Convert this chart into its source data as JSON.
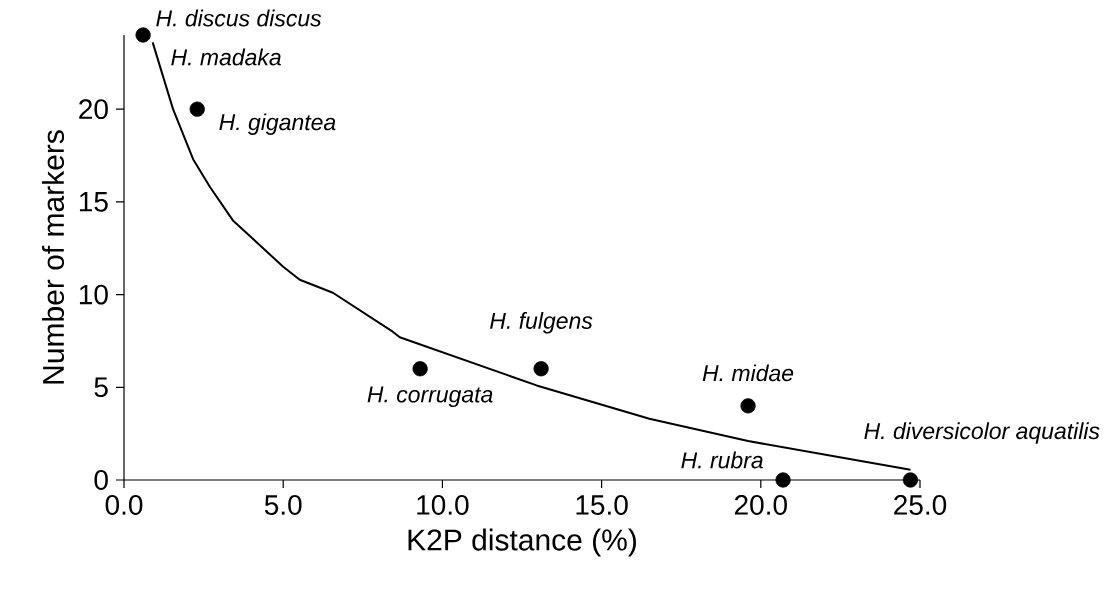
{
  "chart_data": {
    "type": "scatter",
    "xlabel": "K2P distance (%)",
    "ylabel": "Number of markers",
    "xlim": [
      0,
      25
    ],
    "ylim": [
      0,
      24
    ],
    "xticks": [
      {
        "value": 0,
        "label": "0.0"
      },
      {
        "value": 5,
        "label": "5.0"
      },
      {
        "value": 10,
        "label": "10.0"
      },
      {
        "value": 15,
        "label": "15.0"
      },
      {
        "value": 20,
        "label": "20.0"
      },
      {
        "value": 25,
        "label": "25.0"
      }
    ],
    "yticks": [
      0,
      5,
      10,
      15,
      20
    ],
    "series": [
      {
        "color": "#000000",
        "marker": "circle",
        "x": [
          0.6,
          2.3,
          9.3,
          13.1,
          19.6,
          20.7,
          24.7
        ],
        "values": [
          24,
          20,
          6,
          6,
          4,
          0,
          0
        ]
      },
      {
        "type": "line",
        "color": "#000000",
        "marker": "none",
        "line_style": "solid",
        "x": [
          0.9,
          1.54,
          2.17,
          2.7,
          3.42,
          5.0,
          5.52,
          6.56,
          8.44,
          8.66,
          12.96,
          16.5,
          19.6,
          24.7
        ],
        "values": [
          23.6,
          20.0,
          17.3,
          15.8,
          14.0,
          11.5,
          10.8,
          10.1,
          8.0,
          7.7,
          5.1,
          3.3,
          2.1,
          0.55
        ]
      }
    ],
    "annotations": [
      {
        "text": "H. discus discus",
        "x": 0.6,
        "y": 24
      },
      {
        "text": "H. madaka",
        "x": 0.6,
        "y": 24
      },
      {
        "text": "H. gigantea",
        "x": 2.3,
        "y": 20
      },
      {
        "text": "H. corrugata",
        "x": 9.3,
        "y": 6
      },
      {
        "text": "H. fulgens",
        "x": 13.1,
        "y": 6
      },
      {
        "text": "H. midae",
        "x": 19.6,
        "y": 4
      },
      {
        "text": "H. rubra",
        "x": 20.7,
        "y": 0
      },
      {
        "text": "H. diversicolor aquatilis",
        "x": 24.7,
        "y": 0
      }
    ]
  }
}
